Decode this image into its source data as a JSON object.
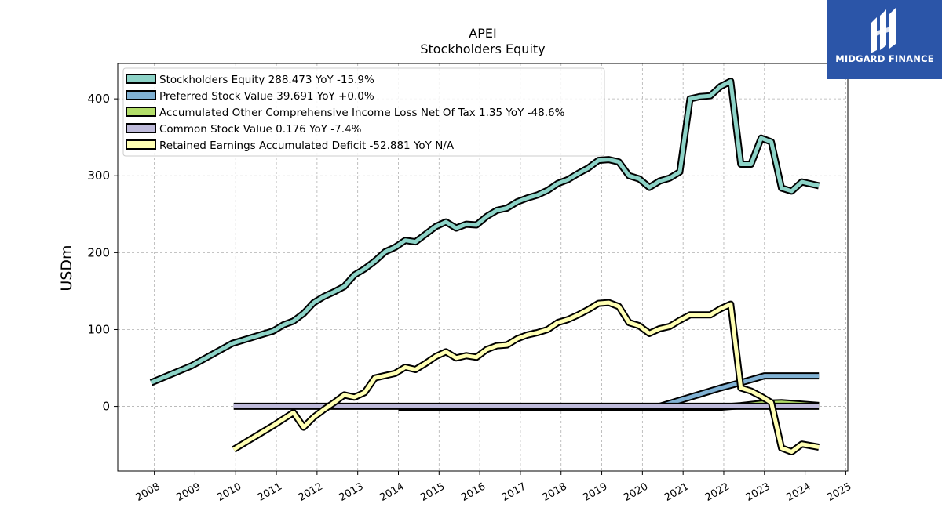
{
  "header": {
    "ticker": "APEI",
    "subtitle": "Stockholders  Equity"
  },
  "brand": {
    "name": "MIDGARD FINANCE",
    "background": "#2b55a8"
  },
  "chart_data": {
    "type": "line",
    "title": "APEI",
    "subtitle": "Stockholders  Equity",
    "ylabel": "USDm",
    "xlabel": "",
    "xlim": [
      2007.1,
      2025.05
    ],
    "ylim": [
      -84,
      446
    ],
    "grid": true,
    "legend_position": "top-left",
    "yticks": [
      0,
      100,
      200,
      300,
      400
    ],
    "xticks": [
      2008,
      2009,
      2010,
      2011,
      2012,
      2013,
      2014,
      2015,
      2016,
      2017,
      2018,
      2019,
      2020,
      2021,
      2022,
      2023,
      2024,
      2025
    ],
    "series": [
      {
        "name": "Stockholders Equity",
        "legend": "Stockholders Equity  288.473 YoY -15.9%",
        "color": "#8dd3c7",
        "points": [
          [
            2007.92,
            31
          ],
          [
            2008.92,
            53
          ],
          [
            2009.92,
            82
          ],
          [
            2010.92,
            98
          ],
          [
            2011.17,
            106
          ],
          [
            2011.42,
            111
          ],
          [
            2011.67,
            121
          ],
          [
            2011.92,
            135
          ],
          [
            2012.17,
            143
          ],
          [
            2012.42,
            149
          ],
          [
            2012.67,
            156
          ],
          [
            2012.92,
            171
          ],
          [
            2013.17,
            179
          ],
          [
            2013.42,
            189
          ],
          [
            2013.67,
            201
          ],
          [
            2013.92,
            207
          ],
          [
            2014.17,
            216
          ],
          [
            2014.42,
            214
          ],
          [
            2014.67,
            224
          ],
          [
            2014.92,
            234
          ],
          [
            2015.17,
            240
          ],
          [
            2015.42,
            232
          ],
          [
            2015.67,
            237
          ],
          [
            2015.92,
            236
          ],
          [
            2016.17,
            247
          ],
          [
            2016.42,
            255
          ],
          [
            2016.67,
            258
          ],
          [
            2016.92,
            266
          ],
          [
            2017.17,
            271
          ],
          [
            2017.42,
            275
          ],
          [
            2017.67,
            281
          ],
          [
            2017.92,
            290
          ],
          [
            2018.17,
            295
          ],
          [
            2018.42,
            303
          ],
          [
            2018.67,
            310
          ],
          [
            2018.92,
            320
          ],
          [
            2019.17,
            321
          ],
          [
            2019.42,
            318
          ],
          [
            2019.67,
            300
          ],
          [
            2019.92,
            296
          ],
          [
            2020.17,
            285
          ],
          [
            2020.42,
            293
          ],
          [
            2020.67,
            297
          ],
          [
            2020.92,
            305
          ],
          [
            2021.17,
            400
          ],
          [
            2021.42,
            403
          ],
          [
            2021.67,
            404
          ],
          [
            2021.92,
            416
          ],
          [
            2022.17,
            423
          ],
          [
            2022.42,
            315
          ],
          [
            2022.67,
            315
          ],
          [
            2022.92,
            349
          ],
          [
            2023.17,
            344
          ],
          [
            2023.42,
            284
          ],
          [
            2023.67,
            280
          ],
          [
            2023.92,
            292
          ],
          [
            2024.34,
            287
          ]
        ]
      },
      {
        "name": "Preferred Stock Value",
        "legend": "Preferred Stock Value  39.691 YoY +0.0%",
        "color": "#80b1d3",
        "points": [
          [
            2020.42,
            0
          ],
          [
            2020.67,
            4
          ],
          [
            2020.92,
            8
          ],
          [
            2021.42,
            16
          ],
          [
            2021.92,
            24
          ],
          [
            2022.42,
            31
          ],
          [
            2023.0,
            39.7
          ],
          [
            2024.34,
            39.7
          ]
        ]
      },
      {
        "name": "Accumulated Other Comprehensive Income Loss Net Of Tax",
        "legend": "Accumulated Other Comprehensive Income Loss Net Of Tax  1.35 YoY -48.6%",
        "color": "#b3de69",
        "points": [
          [
            2014.0,
            -1
          ],
          [
            2016.0,
            -1
          ],
          [
            2018.0,
            -1
          ],
          [
            2020.0,
            -1
          ],
          [
            2021.92,
            -1
          ],
          [
            2022.42,
            1
          ],
          [
            2022.92,
            4
          ],
          [
            2023.42,
            5
          ],
          [
            2024.34,
            1.35
          ]
        ]
      },
      {
        "name": "Common Stock Value",
        "legend": "Common Stock Value  0.176 YoY -7.4%",
        "color": "#bebada",
        "points": [
          [
            2009.95,
            0.2
          ],
          [
            2012.0,
            0.2
          ],
          [
            2016.0,
            0.2
          ],
          [
            2020.0,
            0.2
          ],
          [
            2024.34,
            0.18
          ]
        ]
      },
      {
        "name": "Retained Earnings Accumulated Deficit",
        "legend": "Retained Earnings Accumulated Deficit  -52.881 YoY N/A",
        "color": "#ffffb3",
        "points": [
          [
            2009.95,
            -56
          ],
          [
            2010.92,
            -25
          ],
          [
            2011.42,
            -8
          ],
          [
            2011.67,
            -27
          ],
          [
            2011.92,
            -14
          ],
          [
            2012.17,
            -4
          ],
          [
            2012.42,
            5
          ],
          [
            2012.67,
            15
          ],
          [
            2012.92,
            12
          ],
          [
            2013.17,
            18
          ],
          [
            2013.42,
            37
          ],
          [
            2013.67,
            40
          ],
          [
            2013.92,
            43
          ],
          [
            2014.17,
            51
          ],
          [
            2014.42,
            48
          ],
          [
            2014.67,
            56
          ],
          [
            2014.92,
            65
          ],
          [
            2015.17,
            71
          ],
          [
            2015.42,
            63
          ],
          [
            2015.67,
            66
          ],
          [
            2015.92,
            64
          ],
          [
            2016.17,
            74
          ],
          [
            2016.42,
            79
          ],
          [
            2016.67,
            80
          ],
          [
            2016.92,
            88
          ],
          [
            2017.17,
            93
          ],
          [
            2017.42,
            96
          ],
          [
            2017.67,
            100
          ],
          [
            2017.92,
            109
          ],
          [
            2018.17,
            113
          ],
          [
            2018.42,
            119
          ],
          [
            2018.67,
            126
          ],
          [
            2018.92,
            134
          ],
          [
            2019.17,
            135
          ],
          [
            2019.42,
            130
          ],
          [
            2019.67,
            109
          ],
          [
            2019.92,
            105
          ],
          [
            2020.17,
            95
          ],
          [
            2020.42,
            101
          ],
          [
            2020.67,
            104
          ],
          [
            2020.92,
            112
          ],
          [
            2021.17,
            119
          ],
          [
            2021.42,
            119
          ],
          [
            2021.67,
            119
          ],
          [
            2021.92,
            127
          ],
          [
            2022.17,
            133
          ],
          [
            2022.42,
            24
          ],
          [
            2022.67,
            20
          ],
          [
            2022.92,
            13
          ],
          [
            2023.17,
            5
          ],
          [
            2023.42,
            -54
          ],
          [
            2023.67,
            -59
          ],
          [
            2023.92,
            -49
          ],
          [
            2024.34,
            -53
          ]
        ]
      }
    ]
  }
}
